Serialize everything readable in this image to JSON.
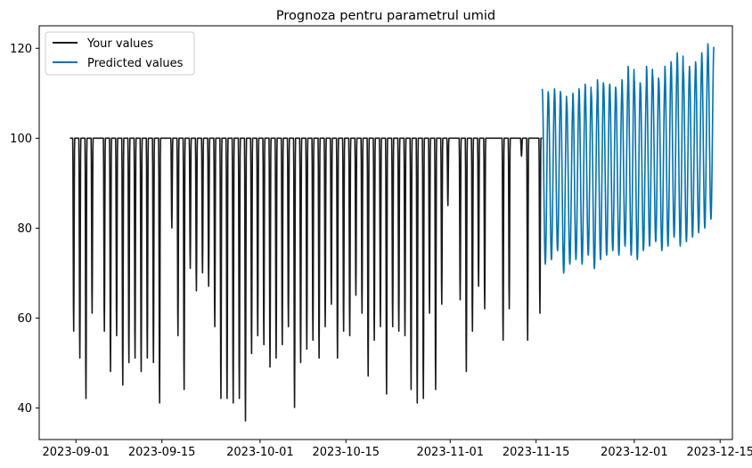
{
  "chart_data": {
    "type": "line",
    "title": "Prognoza pentru parametrul umid",
    "xlabel": "",
    "ylabel": "",
    "xlim": [
      "2023-08-26",
      "2023-12-17"
    ],
    "ylim": [
      33,
      125
    ],
    "x_ticks": [
      "2023-09-01",
      "2023-09-15",
      "2023-10-01",
      "2023-10-15",
      "2023-11-01",
      "2023-11-15",
      "2023-12-01",
      "2023-12-15"
    ],
    "y_ticks": [
      40,
      60,
      80,
      100,
      120
    ],
    "grid": false,
    "legend": "top-left",
    "series": [
      {
        "name": "Your values",
        "color": "#1a1a1a",
        "start": "2023-08-31",
        "end": "2023-11-16",
        "daily_min": [
          57,
          51,
          42,
          61,
          100,
          57,
          48,
          56,
          45,
          50,
          51,
          48,
          51,
          50,
          41,
          100,
          80,
          56,
          44,
          71,
          66,
          70,
          67,
          58,
          42,
          42,
          41,
          42,
          37,
          52,
          56,
          54,
          49,
          51,
          54,
          58,
          40,
          50,
          53,
          55,
          51,
          58,
          63,
          51,
          57,
          56,
          65,
          61,
          47,
          55,
          58,
          43,
          58,
          57,
          56,
          44,
          41,
          42,
          61,
          44,
          63,
          85,
          100,
          64,
          48,
          57,
          67,
          62,
          100,
          100,
          55,
          62,
          100,
          96,
          55,
          100,
          61
        ],
        "daily_max": [
          100,
          100,
          100,
          100,
          100,
          100,
          100,
          100,
          100,
          100,
          100,
          100,
          100,
          100,
          100,
          100,
          100,
          100,
          100,
          100,
          100,
          100,
          100,
          100,
          100,
          100,
          100,
          100,
          100,
          100,
          100,
          100,
          100,
          100,
          100,
          100,
          100,
          100,
          100,
          100,
          100,
          100,
          100,
          100,
          100,
          100,
          100,
          100,
          100,
          100,
          100,
          100,
          100,
          100,
          100,
          100,
          100,
          100,
          100,
          100,
          100,
          100,
          100,
          100,
          100,
          100,
          100,
          100,
          100,
          100,
          100,
          100,
          100,
          100,
          100,
          100,
          100
        ]
      },
      {
        "name": "Predicted values",
        "color": "#0072b2",
        "start": "2023-11-16",
        "end": "2023-12-13",
        "daily_min": [
          72,
          73,
          75,
          70,
          72,
          73,
          72,
          74,
          71,
          73,
          74,
          75,
          74,
          76,
          74,
          73,
          75,
          76,
          77,
          75,
          76,
          78,
          76,
          77,
          78,
          79,
          80,
          82
        ],
        "daily_max": [
          111,
          110,
          111,
          110,
          108,
          110,
          111,
          112,
          110,
          113,
          112,
          112,
          111,
          113,
          116,
          113,
          112,
          116,
          114,
          113,
          116,
          117,
          119,
          115,
          116,
          117,
          119,
          121
        ]
      }
    ]
  }
}
